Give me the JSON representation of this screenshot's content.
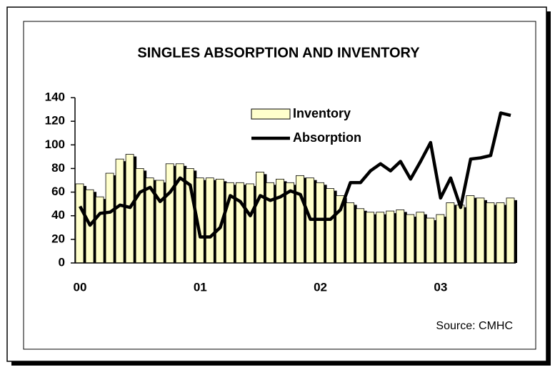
{
  "chart_data": {
    "type": "bar",
    "title": "SINGLES ABSORPTION AND INVENTORY",
    "source": "Source:  CMHC",
    "categories": [
      "00",
      null,
      null,
      null,
      null,
      null,
      null,
      null,
      null,
      null,
      null,
      null,
      "01",
      null,
      null,
      null,
      null,
      null,
      null,
      null,
      null,
      null,
      null,
      null,
      "02",
      null,
      null,
      null,
      null,
      null,
      null,
      null,
      null,
      null,
      null,
      null,
      "03",
      null,
      null,
      null,
      null,
      null,
      null,
      null
    ],
    "series": [
      {
        "name": "Inventory",
        "type": "bar",
        "color": "#ffffcc",
        "values": [
          67,
          62,
          56,
          76,
          88,
          92,
          80,
          72,
          70,
          84,
          84,
          80,
          72,
          72,
          71,
          68,
          68,
          67,
          77,
          68,
          71,
          68,
          74,
          72,
          68,
          63,
          57,
          51,
          46,
          43,
          43,
          44,
          45,
          41,
          43,
          38,
          41,
          51,
          49,
          57,
          55,
          51,
          51,
          55
        ]
      },
      {
        "name": "Absorption",
        "type": "line",
        "color": "#000000",
        "values": [
          48,
          32,
          42,
          43,
          49,
          47,
          60,
          64,
          52,
          60,
          72,
          66,
          22,
          22,
          30,
          57,
          52,
          40,
          57,
          53,
          56,
          61,
          58,
          37,
          37,
          37,
          45,
          68,
          68,
          78,
          84,
          78,
          86,
          71,
          86,
          102,
          55,
          72,
          47,
          88,
          89,
          91,
          127,
          125
        ]
      }
    ],
    "ylim": [
      0,
      140
    ],
    "yticks": [
      0,
      20,
      40,
      60,
      80,
      100,
      120,
      140
    ]
  }
}
